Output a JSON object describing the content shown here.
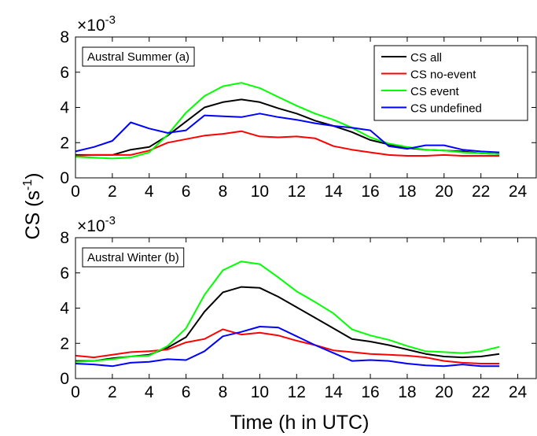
{
  "figure": {
    "ylabel_main": "CS (s",
    "ylabel_sup": "-1",
    "ylabel_close": ")",
    "xlabel": "Time (h in UTC)"
  },
  "colors": {
    "CS all": "#000000",
    "CS no-event": "#ff0000",
    "CS event": "#00ff00",
    "CS undefined": "#0000ff"
  },
  "chart_data": [
    {
      "type": "line",
      "panel_label": "Austral Summer (a)",
      "multiplier_base": "×10",
      "multiplier_exp": "-3",
      "xlim": [
        0,
        25
      ],
      "ylim": [
        0,
        8
      ],
      "xticks": [
        "0",
        "2",
        "4",
        "6",
        "8",
        "10",
        "12",
        "14",
        "16",
        "18",
        "20",
        "22",
        "24"
      ],
      "yticks": [
        "0",
        "2",
        "4",
        "6",
        "8"
      ],
      "legend_position": "top-right",
      "x": [
        0,
        1,
        2,
        3,
        4,
        5,
        6,
        7,
        8,
        9,
        10,
        11,
        12,
        13,
        14,
        15,
        16,
        17,
        18,
        19,
        20,
        21,
        22,
        23
      ],
      "series": [
        {
          "name": "CS all",
          "values": [
            1.3,
            1.3,
            1.3,
            1.6,
            1.75,
            2.4,
            3.2,
            4.0,
            4.3,
            4.45,
            4.3,
            3.95,
            3.65,
            3.25,
            2.95,
            2.6,
            2.15,
            1.9,
            1.7,
            1.6,
            1.55,
            1.5,
            1.4,
            1.35
          ]
        },
        {
          "name": "CS no-event",
          "values": [
            1.25,
            1.3,
            1.3,
            1.3,
            1.55,
            2.0,
            2.2,
            2.4,
            2.5,
            2.65,
            2.35,
            2.3,
            2.35,
            2.25,
            1.8,
            1.6,
            1.45,
            1.3,
            1.25,
            1.25,
            1.3,
            1.25,
            1.25,
            1.25
          ]
        },
        {
          "name": "CS event",
          "values": [
            1.2,
            1.15,
            1.1,
            1.15,
            1.45,
            2.45,
            3.7,
            4.65,
            5.2,
            5.4,
            5.1,
            4.6,
            4.1,
            3.65,
            3.3,
            2.85,
            2.3,
            1.95,
            1.75,
            1.6,
            1.55,
            1.45,
            1.4,
            1.35
          ]
        },
        {
          "name": "CS undefined",
          "values": [
            1.5,
            1.75,
            2.1,
            3.15,
            2.8,
            2.55,
            2.7,
            3.55,
            3.5,
            3.45,
            3.65,
            3.45,
            3.3,
            3.1,
            2.95,
            2.85,
            2.7,
            1.8,
            1.65,
            1.85,
            1.85,
            1.6,
            1.5,
            1.45
          ]
        }
      ]
    },
    {
      "type": "line",
      "panel_label": "Austral Winter (b)",
      "multiplier_base": "×10",
      "multiplier_exp": "-3",
      "xlim": [
        0,
        25
      ],
      "ylim": [
        0,
        8
      ],
      "xticks": [
        "0",
        "2",
        "4",
        "6",
        "8",
        "10",
        "12",
        "14",
        "16",
        "18",
        "20",
        "22",
        "24"
      ],
      "yticks": [
        "0",
        "2",
        "4",
        "6",
        "8"
      ],
      "x": [
        0,
        1,
        2,
        3,
        4,
        5,
        6,
        7,
        8,
        9,
        10,
        11,
        12,
        13,
        14,
        15,
        16,
        17,
        18,
        19,
        20,
        21,
        22,
        23
      ],
      "series": [
        {
          "name": "CS all",
          "values": [
            1.0,
            1.0,
            1.15,
            1.25,
            1.35,
            1.75,
            2.35,
            3.8,
            4.9,
            5.2,
            5.15,
            4.65,
            4.05,
            3.45,
            2.85,
            2.25,
            2.1,
            1.9,
            1.65,
            1.4,
            1.25,
            1.2,
            1.25,
            1.4
          ]
        },
        {
          "name": "CS no-event",
          "values": [
            1.3,
            1.2,
            1.35,
            1.5,
            1.55,
            1.65,
            2.05,
            2.25,
            2.8,
            2.5,
            2.6,
            2.45,
            2.15,
            1.9,
            1.6,
            1.5,
            1.4,
            1.35,
            1.3,
            1.2,
            1.0,
            0.9,
            0.85,
            0.85
          ]
        },
        {
          "name": "CS event",
          "values": [
            0.95,
            1.0,
            1.1,
            1.25,
            1.3,
            1.85,
            2.85,
            4.75,
            6.15,
            6.65,
            6.5,
            5.75,
            4.95,
            4.35,
            3.7,
            2.8,
            2.45,
            2.2,
            1.85,
            1.55,
            1.5,
            1.45,
            1.55,
            1.8
          ]
        },
        {
          "name": "CS undefined",
          "values": [
            0.85,
            0.8,
            0.7,
            0.9,
            0.95,
            1.1,
            1.05,
            1.55,
            2.4,
            2.65,
            2.95,
            2.9,
            2.4,
            1.9,
            1.45,
            1.0,
            1.05,
            1.0,
            0.85,
            0.75,
            0.7,
            0.8,
            0.7,
            0.7
          ]
        }
      ]
    }
  ]
}
